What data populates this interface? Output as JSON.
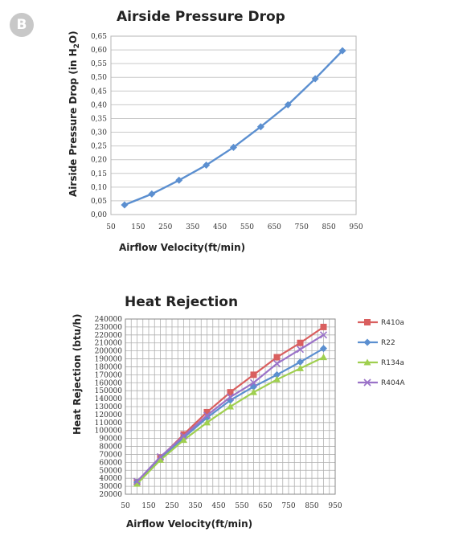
{
  "badge": "B",
  "chart_data": [
    {
      "type": "line",
      "title": "Airside Pressure Drop",
      "xlabel": "Airflow Velocity(ft/min)",
      "ylabel_main": "Airside Pressure Drop (in H",
      "ylabel_sub": "2",
      "ylabel_end": "O)",
      "xlim": [
        50,
        950
      ],
      "ylim": [
        0,
        0.65
      ],
      "x_ticks": [
        50,
        150,
        250,
        350,
        450,
        550,
        650,
        750,
        850,
        950
      ],
      "x_tick_labels": [
        "50",
        "150",
        "250",
        "350",
        "450",
        "550",
        "650",
        "750",
        "850",
        "950"
      ],
      "y_ticks": [
        0,
        0.05,
        0.1,
        0.15,
        0.2,
        0.25,
        0.3,
        0.35,
        0.4,
        0.45,
        0.5,
        0.55,
        0.6,
        0.65
      ],
      "y_tick_labels": [
        "0,00",
        "0,05",
        "0,10",
        "0,15",
        "0,20",
        "0,25",
        "0,30",
        "0,35",
        "0,40",
        "0,45",
        "0,50",
        "0,55",
        "0,60",
        "0,65"
      ],
      "grid": "horizontal",
      "color": "#5b8fd0",
      "series": [
        {
          "x": [
            100,
            200,
            300,
            400,
            500,
            600,
            700,
            800,
            900
          ],
          "values": [
            0.035,
            0.075,
            0.125,
            0.18,
            0.245,
            0.32,
            0.4,
            0.495,
            0.597
          ]
        }
      ]
    },
    {
      "type": "line",
      "title": "Heat Rejection",
      "xlabel": "Airflow Velocity(ft/min)",
      "ylabel": "Heat Rejection (btu/h)",
      "xlim": [
        50,
        950
      ],
      "ylim": [
        20000,
        240000
      ],
      "x_ticks": [
        50,
        150,
        250,
        350,
        450,
        550,
        650,
        750,
        850,
        950
      ],
      "x_tick_labels": [
        "50",
        "150",
        "250",
        "350",
        "450",
        "550",
        "650",
        "750",
        "850",
        "950"
      ],
      "y_tick_step": 10000,
      "grid": "both",
      "legend_position": "right",
      "x": [
        100,
        200,
        300,
        400,
        500,
        600,
        700,
        800,
        900
      ],
      "series": [
        {
          "name": "R410a",
          "color": "#d95f5f",
          "marker": "square",
          "values": [
            35000,
            66000,
            95000,
            123000,
            148000,
            170000,
            192000,
            210000,
            230000
          ]
        },
        {
          "name": "R22",
          "color": "#5b8fd0",
          "marker": "diamond",
          "values": [
            35000,
            64000,
            91000,
            116000,
            138000,
            155000,
            170000,
            186000,
            203000
          ]
        },
        {
          "name": "R134a",
          "color": "#9fcf4f",
          "marker": "triangle",
          "values": [
            33000,
            63000,
            88000,
            110000,
            130000,
            148000,
            164000,
            178000,
            192000
          ]
        },
        {
          "name": "R404A",
          "color": "#9a72c8",
          "marker": "x",
          "values": [
            36000,
            67000,
            93000,
            119000,
            142000,
            160000,
            184000,
            202000,
            220000
          ]
        }
      ]
    }
  ]
}
